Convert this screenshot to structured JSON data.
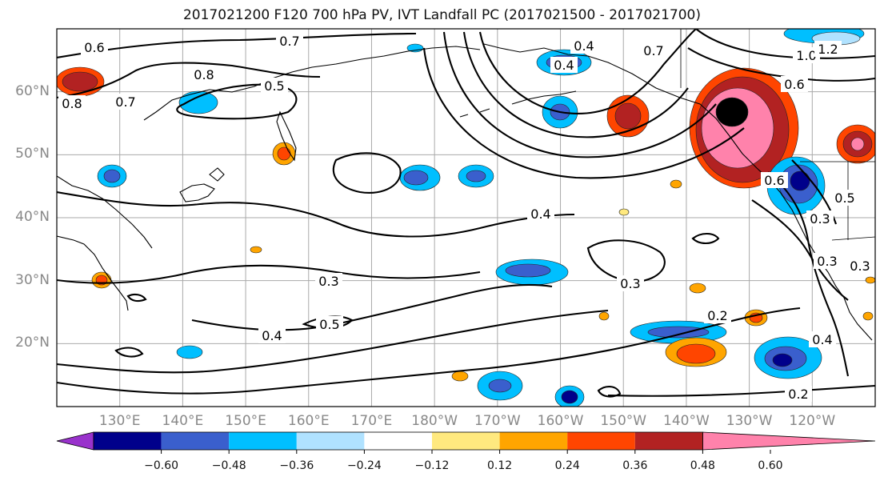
{
  "title": "2017021200 F120 700 hPa PV, IVT Landfall PC (2017021500 - 2017021700)",
  "map": {
    "projection": "cylindrical",
    "lon_range": [
      120,
      250
    ],
    "lat_range": [
      10,
      70
    ],
    "lat_ticks": [
      {
        "value": 60,
        "label": "60°N"
      },
      {
        "value": 50,
        "label": "50°N"
      },
      {
        "value": 40,
        "label": "40°N"
      },
      {
        "value": 30,
        "label": "30°N"
      },
      {
        "value": 20,
        "label": "20°N"
      }
    ],
    "lon_ticks": [
      {
        "value": 130,
        "label": "130°E"
      },
      {
        "value": 140,
        "label": "140°E"
      },
      {
        "value": 150,
        "label": "150°E"
      },
      {
        "value": 160,
        "label": "160°E"
      },
      {
        "value": 170,
        "label": "170°E"
      },
      {
        "value": 180,
        "label": "180°W"
      },
      {
        "value": 190,
        "label": "170°W"
      },
      {
        "value": 200,
        "label": "160°W"
      },
      {
        "value": 210,
        "label": "150°W"
      },
      {
        "value": 220,
        "label": "140°W"
      },
      {
        "value": 230,
        "label": "130°W"
      },
      {
        "value": 240,
        "label": "120°W"
      }
    ],
    "grid": true,
    "contour_labels": [
      "0.6",
      "0.7",
      "0.8",
      "0.8",
      "0.7",
      "0.5",
      "0.4",
      "0.4",
      "0.7",
      "1.0",
      "1.2",
      "0.6",
      "0.6",
      "0.5",
      "0.3",
      "0.4",
      "0.3",
      "0.3",
      "0.3",
      "0.5",
      "0.4",
      "0.3",
      "0.2",
      "0.4",
      "0.2"
    ]
  },
  "colorbar": {
    "tick_labels": [
      "−0.60",
      "−0.48",
      "−0.36",
      "−0.24",
      "−0.12",
      "0.12",
      "0.24",
      "0.36",
      "0.48",
      "0.60"
    ],
    "colors": [
      "#9932cc",
      "#00008b",
      "#3a5fcd",
      "#00bfff",
      "#b0e2ff",
      "#ffffff",
      "#ffe97f",
      "#ffa500",
      "#ff4500",
      "#b22222",
      "#ff82ab"
    ]
  }
}
